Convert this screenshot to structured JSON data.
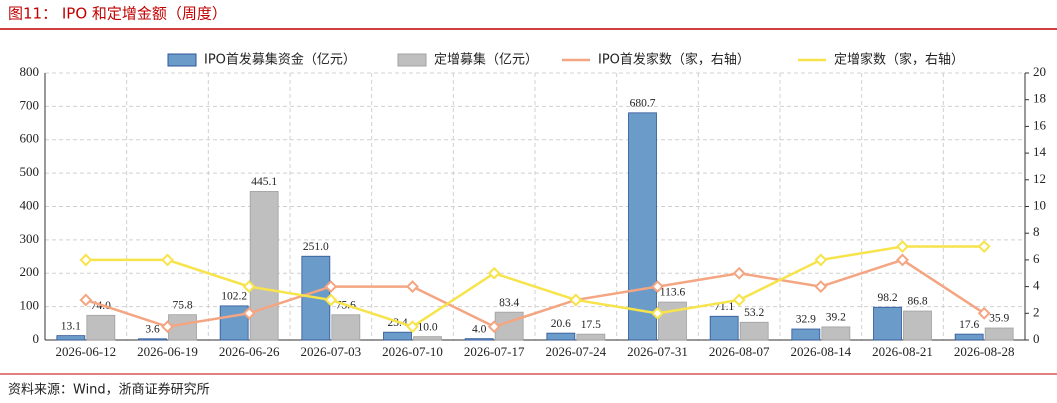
{
  "chart_data": {
    "type": "bar",
    "title": "图11： IPO 和定增金额（周度）",
    "source": "资料来源：Wind，浙商证券研究所",
    "categories": [
      "2026-06-12",
      "2026-06-19",
      "2026-06-26",
      "2026-07-03",
      "2026-07-10",
      "2026-07-17",
      "2026-07-24",
      "2026-07-31",
      "2026-08-07",
      "2026-08-14",
      "2026-08-21",
      "2026-08-28"
    ],
    "series": [
      {
        "name": "IPO首发募集资金（亿元）",
        "type": "bar",
        "color": "#6b9bc8",
        "values": [
          13.1,
          3.6,
          102.2,
          251.0,
          23.4,
          4.0,
          20.6,
          680.7,
          71.1,
          32.9,
          98.2,
          17.6
        ],
        "value_labels": [
          "13.1",
          "3.6",
          "102.2",
          "251.0",
          "23.4",
          "4.0",
          "20.6",
          "680.7",
          "71.1",
          "32.9",
          "98.2",
          "17.6"
        ]
      },
      {
        "name": "定增募集（亿元）",
        "type": "bar",
        "color": "#bfbfbf",
        "values": [
          74.0,
          75.8,
          445.1,
          75.6,
          10.0,
          83.4,
          17.5,
          113.6,
          53.2,
          39.2,
          86.8,
          35.9
        ],
        "value_labels": [
          "74.0",
          "75.8",
          "445.1",
          "75.6",
          "10.0",
          "83.4",
          "17.5",
          "113.6",
          "53.2",
          "39.2",
          "86.8",
          "35.9"
        ]
      },
      {
        "name": "IPO首发家数（家，右轴）",
        "type": "line",
        "axis": "y2",
        "color": "#f4a582",
        "values": [
          3,
          1,
          2,
          4,
          4,
          1,
          3,
          4,
          5,
          4,
          6,
          2
        ]
      },
      {
        "name": "定增家数（家，右轴）",
        "type": "line",
        "axis": "y2",
        "color": "#f7e34a",
        "values": [
          6,
          6,
          4,
          3,
          1,
          5,
          3,
          2,
          3,
          6,
          7,
          7
        ]
      }
    ],
    "ylim": [
      0,
      800
    ],
    "yticks": [
      0,
      100,
      200,
      300,
      400,
      500,
      600,
      700,
      800
    ],
    "y2lim": [
      0,
      20
    ],
    "y2ticks": [
      0,
      2,
      4,
      6,
      8,
      10,
      12,
      14,
      16,
      18,
      20
    ],
    "grid": true
  }
}
